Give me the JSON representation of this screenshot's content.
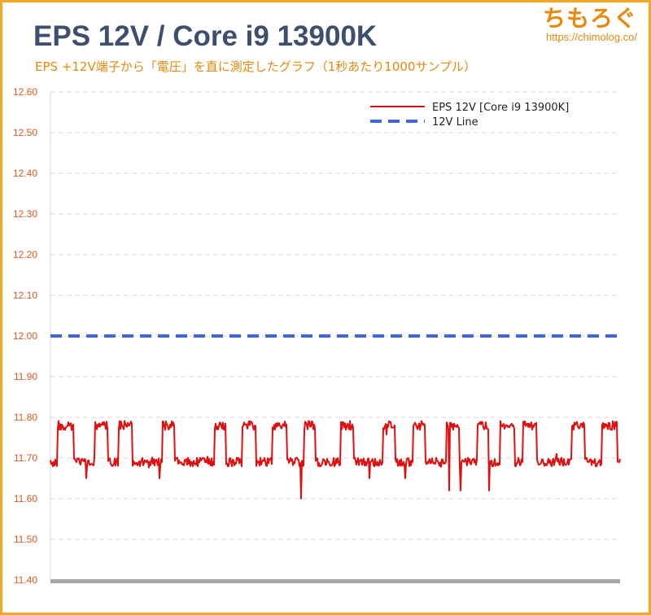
{
  "header": {
    "title": "EPS 12V / Core i9 13900K",
    "subtitle": "EPS +12V端子から「電圧」を直に測定したグラフ（1秒あたり1000サンプル）",
    "brand_name": "ちもろぐ",
    "brand_url": "https://chimolog.co/"
  },
  "colors": {
    "title": "#3d4f6c",
    "accent": "#e8890c",
    "tick_label": "#e8541c",
    "series_voltage": "#e01010",
    "series_reference": "#3f66e0",
    "grid": "#d9d9d9",
    "baseline": "#a6a6a6",
    "border": "#f5a623"
  },
  "chart_data": {
    "type": "line",
    "title": "EPS 12V / Core i9 13900K",
    "xlabel": "",
    "ylabel": "",
    "ylim": [
      11.4,
      12.6
    ],
    "y_ticks": [
      "12.60",
      "12.50",
      "12.40",
      "12.30",
      "12.20",
      "12.10",
      "12.00",
      "11.90",
      "11.80",
      "11.70",
      "11.60",
      "11.50",
      "11.40"
    ],
    "grid": true,
    "legend_position": "top-right",
    "series": [
      {
        "name": "EPS 12V [Core i9 13900K]",
        "style": "solid",
        "color": "#e01010",
        "low_level": 11.69,
        "high_level": 11.78,
        "min": 11.6,
        "max": 11.8,
        "high_intervals": [
          [
            0.012,
            0.04
          ],
          [
            0.078,
            0.1
          ],
          [
            0.12,
            0.143
          ],
          [
            0.196,
            0.218
          ],
          [
            0.288,
            0.308
          ],
          [
            0.337,
            0.36
          ],
          [
            0.39,
            0.415
          ],
          [
            0.445,
            0.465
          ],
          [
            0.51,
            0.532
          ],
          [
            0.583,
            0.605
          ],
          [
            0.636,
            0.658
          ],
          [
            0.695,
            0.718
          ],
          [
            0.75,
            0.77
          ],
          [
            0.79,
            0.815
          ],
          [
            0.83,
            0.853
          ],
          [
            0.915,
            0.938
          ],
          [
            0.968,
            0.995
          ]
        ],
        "dips": [
          [
            0.44,
            11.6
          ],
          [
            0.72,
            11.62
          ],
          [
            0.77,
            11.62
          ],
          [
            0.7,
            11.62
          ],
          [
            0.063,
            11.65
          ],
          [
            0.192,
            11.65
          ],
          [
            0.56,
            11.65
          ],
          [
            0.623,
            11.65
          ]
        ]
      },
      {
        "name": "12V Line",
        "style": "dashed",
        "color": "#3f66e0",
        "values": [
          12.0,
          12.0
        ]
      }
    ]
  }
}
